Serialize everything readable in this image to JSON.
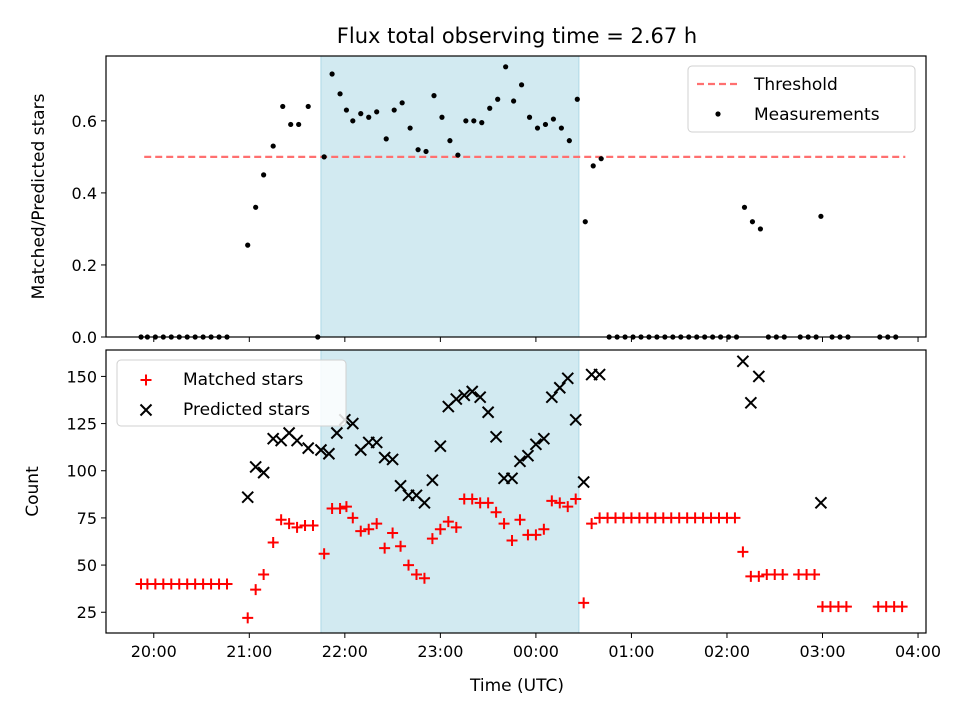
{
  "figure": {
    "title": "Flux total observing time = 2.67 h",
    "xlabel": "Time (UTC)"
  },
  "colors": {
    "shade": "#add8e6",
    "threshold": "#ff7070",
    "measurements": "#000000",
    "matched": "#ff0000",
    "predicted": "#000000"
  },
  "chart_data": [
    {
      "type": "scatter",
      "ylabel": "Matched/Predicted stars",
      "xlim": [
        "19:30",
        "04:05"
      ],
      "ylim": [
        0,
        0.78
      ],
      "grid": false,
      "legend_position": "top-right",
      "x_ticks": [
        "20:00",
        "21:00",
        "22:00",
        "23:00",
        "00:00",
        "01:00",
        "02:00",
        "03:00",
        "04:00"
      ],
      "y_ticks": [
        "0.0",
        "0.2",
        "0.4",
        "0.6"
      ],
      "shaded_interval": {
        "start": "21:45",
        "end": "00:27"
      },
      "threshold": {
        "name": "Threshold",
        "y": 0.5,
        "x_start": "19:54",
        "x_end": "03:52"
      },
      "series": [
        {
          "name": "Measurements",
          "marker": "dot",
          "points": [
            [
              "19:52",
              0
            ],
            [
              "19:56",
              0
            ],
            [
              "20:01",
              0
            ],
            [
              "20:06",
              0
            ],
            [
              "20:11",
              0
            ],
            [
              "20:16",
              0
            ],
            [
              "20:21",
              0
            ],
            [
              "20:26",
              0
            ],
            [
              "20:31",
              0
            ],
            [
              "20:36",
              0
            ],
            [
              "20:41",
              0
            ],
            [
              "20:46",
              0
            ],
            [
              "20:59",
              0.255
            ],
            [
              "21:04",
              0.36
            ],
            [
              "21:09",
              0.45
            ],
            [
              "21:15",
              0.53
            ],
            [
              "21:21",
              0.64
            ],
            [
              "21:26",
              0.59
            ],
            [
              "21:31",
              0.59
            ],
            [
              "21:37",
              0.64
            ],
            [
              "21:43",
              0
            ],
            [
              "21:47",
              0.5
            ],
            [
              "21:52",
              0.73
            ],
            [
              "21:57",
              0.675
            ],
            [
              "22:01",
              0.63
            ],
            [
              "22:05",
              0.6
            ],
            [
              "22:10",
              0.62
            ],
            [
              "22:15",
              0.61
            ],
            [
              "22:20",
              0.625
            ],
            [
              "22:26",
              0.55
            ],
            [
              "22:31",
              0.63
            ],
            [
              "22:36",
              0.65
            ],
            [
              "22:41",
              0.58
            ],
            [
              "22:46",
              0.52
            ],
            [
              "22:51",
              0.515
            ],
            [
              "22:56",
              0.67
            ],
            [
              "23:01",
              0.61
            ],
            [
              "23:06",
              0.545
            ],
            [
              "23:11",
              0.505
            ],
            [
              "23:16",
              0.6
            ],
            [
              "23:21",
              0.6
            ],
            [
              "23:26",
              0.595
            ],
            [
              "23:31",
              0.635
            ],
            [
              "23:36",
              0.66
            ],
            [
              "23:41",
              0.75
            ],
            [
              "23:46",
              0.655
            ],
            [
              "23:51",
              0.7
            ],
            [
              "23:56",
              0.61
            ],
            [
              "00:01",
              0.58
            ],
            [
              "00:06",
              0.59
            ],
            [
              "00:11",
              0.605
            ],
            [
              "00:16",
              0.58
            ],
            [
              "00:21",
              0.545
            ],
            [
              "00:26",
              0.66
            ],
            [
              "00:31",
              0.32
            ],
            [
              "00:36",
              0.475
            ],
            [
              "00:41",
              0.495
            ],
            [
              "00:46",
              0
            ],
            [
              "00:51",
              0
            ],
            [
              "00:56",
              0
            ],
            [
              "01:01",
              0
            ],
            [
              "01:06",
              0
            ],
            [
              "01:11",
              0
            ],
            [
              "01:16",
              0
            ],
            [
              "01:21",
              0
            ],
            [
              "01:26",
              0
            ],
            [
              "01:31",
              0
            ],
            [
              "01:36",
              0
            ],
            [
              "01:41",
              0
            ],
            [
              "01:46",
              0
            ],
            [
              "01:51",
              0
            ],
            [
              "01:56",
              0
            ],
            [
              "02:01",
              0
            ],
            [
              "02:06",
              0
            ],
            [
              "02:11",
              0.36
            ],
            [
              "02:16",
              0.32
            ],
            [
              "02:21",
              0.3
            ],
            [
              "02:26",
              0
            ],
            [
              "02:31",
              0
            ],
            [
              "02:36",
              0
            ],
            [
              "02:46",
              0
            ],
            [
              "02:51",
              0
            ],
            [
              "02:56",
              0
            ],
            [
              "02:59",
              0.335
            ],
            [
              "03:06",
              0
            ],
            [
              "03:11",
              0
            ],
            [
              "03:16",
              0
            ],
            [
              "03:36",
              0
            ],
            [
              "03:41",
              0
            ],
            [
              "03:46",
              0
            ]
          ]
        }
      ]
    },
    {
      "type": "scatter",
      "ylabel": "Count",
      "xlim": [
        "19:30",
        "04:05"
      ],
      "ylim": [
        14,
        164
      ],
      "grid": false,
      "legend_position": "top-left",
      "x_ticks": [
        "20:00",
        "21:00",
        "22:00",
        "23:00",
        "00:00",
        "01:00",
        "02:00",
        "03:00",
        "04:00"
      ],
      "y_ticks": [
        "25",
        "50",
        "75",
        "100",
        "125",
        "150"
      ],
      "shaded_interval": {
        "start": "21:45",
        "end": "00:27"
      },
      "series": [
        {
          "name": "Matched stars",
          "marker": "plus",
          "points": [
            [
              "19:52",
              40
            ],
            [
              "19:56",
              40
            ],
            [
              "20:01",
              40
            ],
            [
              "20:06",
              40
            ],
            [
              "20:11",
              40
            ],
            [
              "20:16",
              40
            ],
            [
              "20:21",
              40
            ],
            [
              "20:26",
              40
            ],
            [
              "20:31",
              40
            ],
            [
              "20:36",
              40
            ],
            [
              "20:41",
              40
            ],
            [
              "20:46",
              40
            ],
            [
              "20:59",
              22
            ],
            [
              "21:04",
              37
            ],
            [
              "21:09",
              45
            ],
            [
              "21:15",
              62
            ],
            [
              "21:20",
              74
            ],
            [
              "21:25",
              72
            ],
            [
              "21:30",
              70
            ],
            [
              "21:35",
              71
            ],
            [
              "21:40",
              71
            ],
            [
              "21:47",
              56
            ],
            [
              "21:52",
              80
            ],
            [
              "21:57",
              80
            ],
            [
              "22:01",
              81
            ],
            [
              "22:05",
              75
            ],
            [
              "22:10",
              68
            ],
            [
              "22:15",
              69
            ],
            [
              "22:20",
              72
            ],
            [
              "22:25",
              59
            ],
            [
              "22:30",
              67
            ],
            [
              "22:35",
              60
            ],
            [
              "22:40",
              50
            ],
            [
              "22:45",
              45
            ],
            [
              "22:50",
              43
            ],
            [
              "22:55",
              64
            ],
            [
              "23:00",
              69
            ],
            [
              "23:05",
              73
            ],
            [
              "23:10",
              70
            ],
            [
              "23:15",
              85
            ],
            [
              "23:20",
              85
            ],
            [
              "23:25",
              83
            ],
            [
              "23:30",
              83
            ],
            [
              "23:35",
              78
            ],
            [
              "23:40",
              72
            ],
            [
              "23:45",
              63
            ],
            [
              "23:50",
              74
            ],
            [
              "23:55",
              66
            ],
            [
              "00:00",
              66
            ],
            [
              "00:05",
              69
            ],
            [
              "00:10",
              84
            ],
            [
              "00:15",
              83
            ],
            [
              "00:20",
              81
            ],
            [
              "00:25",
              85
            ],
            [
              "00:30",
              30
            ],
            [
              "00:35",
              72
            ],
            [
              "00:40",
              75
            ],
            [
              "00:45",
              75
            ],
            [
              "00:50",
              75
            ],
            [
              "00:55",
              75
            ],
            [
              "01:00",
              75
            ],
            [
              "01:05",
              75
            ],
            [
              "01:10",
              75
            ],
            [
              "01:15",
              75
            ],
            [
              "01:20",
              75
            ],
            [
              "01:25",
              75
            ],
            [
              "01:30",
              75
            ],
            [
              "01:35",
              75
            ],
            [
              "01:40",
              75
            ],
            [
              "01:45",
              75
            ],
            [
              "01:50",
              75
            ],
            [
              "01:55",
              75
            ],
            [
              "02:00",
              75
            ],
            [
              "02:05",
              75
            ],
            [
              "02:10",
              57
            ],
            [
              "02:15",
              44
            ],
            [
              "02:20",
              44
            ],
            [
              "02:25",
              45
            ],
            [
              "02:30",
              45
            ],
            [
              "02:35",
              45
            ],
            [
              "02:45",
              45
            ],
            [
              "02:50",
              45
            ],
            [
              "02:55",
              45
            ],
            [
              "03:00",
              28
            ],
            [
              "03:05",
              28
            ],
            [
              "03:10",
              28
            ],
            [
              "03:15",
              28
            ],
            [
              "03:35",
              28
            ],
            [
              "03:40",
              28
            ],
            [
              "03:45",
              28
            ],
            [
              "03:50",
              28
            ]
          ]
        },
        {
          "name": "Predicted stars",
          "marker": "x",
          "points": [
            [
              "20:59",
              86
            ],
            [
              "21:04",
              102
            ],
            [
              "21:09",
              99
            ],
            [
              "21:15",
              117
            ],
            [
              "21:20",
              116
            ],
            [
              "21:25",
              120
            ],
            [
              "21:30",
              116
            ],
            [
              "21:37",
              112
            ],
            [
              "21:45",
              111
            ],
            [
              "21:50",
              109
            ],
            [
              "21:55",
              120
            ],
            [
              "22:00",
              127
            ],
            [
              "22:05",
              125
            ],
            [
              "22:10",
              111
            ],
            [
              "22:15",
              115
            ],
            [
              "22:20",
              115
            ],
            [
              "22:25",
              107
            ],
            [
              "22:30",
              106
            ],
            [
              "22:35",
              92
            ],
            [
              "22:40",
              87
            ],
            [
              "22:45",
              87
            ],
            [
              "22:50",
              83
            ],
            [
              "22:55",
              95
            ],
            [
              "23:00",
              113
            ],
            [
              "23:05",
              134
            ],
            [
              "23:10",
              138
            ],
            [
              "23:15",
              140
            ],
            [
              "23:20",
              142
            ],
            [
              "23:25",
              139
            ],
            [
              "23:30",
              131
            ],
            [
              "23:35",
              118
            ],
            [
              "23:40",
              96
            ],
            [
              "23:45",
              96
            ],
            [
              "23:50",
              105
            ],
            [
              "23:55",
              108
            ],
            [
              "00:00",
              114
            ],
            [
              "00:05",
              117
            ],
            [
              "00:10",
              139
            ],
            [
              "00:15",
              144
            ],
            [
              "00:20",
              149
            ],
            [
              "00:25",
              127
            ],
            [
              "00:30",
              94
            ],
            [
              "00:35",
              151
            ],
            [
              "00:40",
              151
            ],
            [
              "02:10",
              158
            ],
            [
              "02:15",
              136
            ],
            [
              "02:20",
              150
            ],
            [
              "02:59",
              83
            ]
          ]
        }
      ]
    }
  ]
}
